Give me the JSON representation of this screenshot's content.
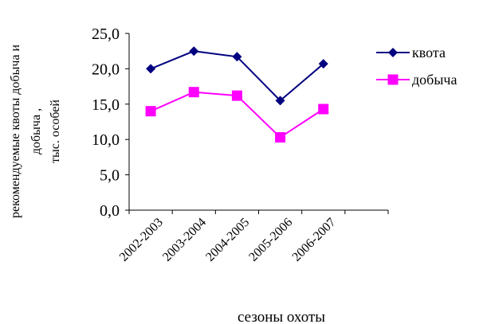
{
  "chart_data": {
    "type": "line",
    "categories": [
      "2002-2003",
      "2003-2004",
      "2004-2005",
      "2005-2006",
      "2006-2007"
    ],
    "series": [
      {
        "name": "квота",
        "values": [
          20.0,
          22.5,
          21.7,
          15.5,
          20.7
        ],
        "color": "#000080",
        "marker": "diamond"
      },
      {
        "name": "добыча",
        "values": [
          14.0,
          16.7,
          16.2,
          10.3,
          14.3
        ],
        "color": "#ff00ff",
        "marker": "square"
      }
    ],
    "ylim": [
      0,
      25
    ],
    "yticks": [
      "0,0",
      "5,0",
      "10,0",
      "15,0",
      "20,0",
      "25,0"
    ],
    "ylabel_lines": [
      "рекомендуемые квоты добыча и",
      "добыча ,",
      "тыс. особей"
    ],
    "xlabel": "сезоны охоты",
    "grid": false,
    "legend_position": "right"
  }
}
